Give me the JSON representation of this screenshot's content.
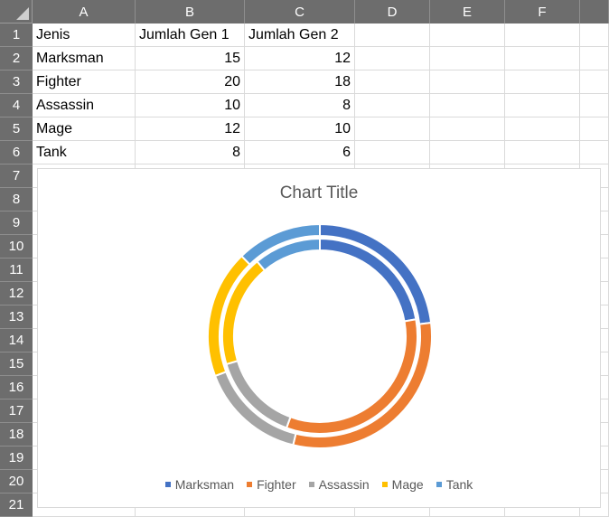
{
  "sheet": {
    "columns": [
      "A",
      "B",
      "C",
      "D",
      "E",
      "F"
    ],
    "rows": [
      "1",
      "2",
      "3",
      "4",
      "5",
      "6",
      "7",
      "8",
      "9",
      "10",
      "11",
      "12",
      "13",
      "14",
      "15",
      "16",
      "17",
      "18",
      "19",
      "20",
      "21"
    ],
    "table": {
      "headers": [
        "Jenis",
        "Jumlah Gen 1",
        "Jumlah Gen 2"
      ],
      "data": [
        [
          "Marksman",
          "15",
          "12"
        ],
        [
          "Fighter",
          "20",
          "18"
        ],
        [
          "Assassin",
          "10",
          "8"
        ],
        [
          "Mage",
          "12",
          "10"
        ],
        [
          "Tank",
          "8",
          "6"
        ]
      ]
    }
  },
  "chart_data": {
    "type": "doughnut",
    "title": "Chart Title",
    "categories": [
      "Marksman",
      "Fighter",
      "Assassin",
      "Mage",
      "Tank"
    ],
    "series": [
      {
        "values": [
          15,
          20,
          10,
          12,
          8
        ]
      },
      {
        "values": [
          12,
          18,
          8,
          10,
          6
        ]
      }
    ],
    "colors": [
      "#4472c4",
      "#ed7d31",
      "#a5a5a5",
      "#ffc000",
      "#5b9bd5"
    ],
    "legend_position": "bottom"
  }
}
